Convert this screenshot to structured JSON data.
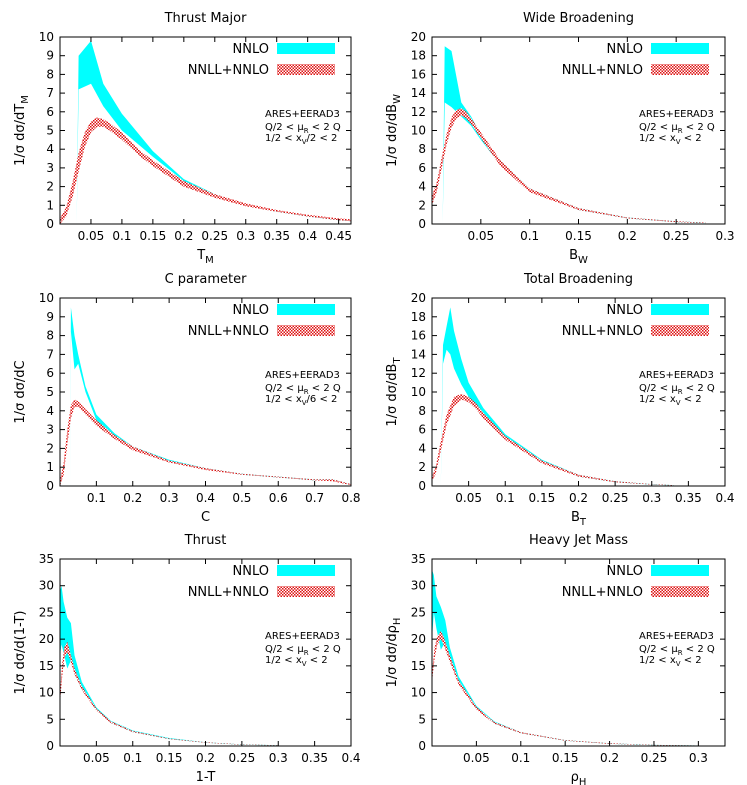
{
  "pattern_color": "#dd1111",
  "chart_data": [
    {
      "type": "area",
      "title": "Thrust Major",
      "xlabel": "T",
      "xlabel_sub": "M",
      "ylabel": "1/σ dσ/dT",
      "ylabel_sub": "M",
      "xlim": [
        0.0,
        0.47
      ],
      "ylim": [
        0,
        10
      ],
      "xticks": [
        0.05,
        0.1,
        0.15,
        0.2,
        0.25,
        0.3,
        0.35,
        0.4,
        0.45
      ],
      "xtick_labels": [
        "0.05",
        "0.1",
        "0.15",
        "0.2",
        "0.25",
        "0.3",
        "0.35",
        "0.4",
        "0.45"
      ],
      "yticks": [
        0,
        1,
        2,
        3,
        4,
        5,
        6,
        7,
        8,
        9,
        10
      ],
      "ytick_labels": [
        "0",
        "1",
        "2",
        "3",
        "4",
        "5",
        "6",
        "7",
        "8",
        "9",
        "10"
      ],
      "legend": [
        "NNLO",
        "NNLL+NNLO"
      ],
      "legend_position": "top-right",
      "annotations": [
        {
          "text": "ARES+EERAD3"
        },
        {
          "text": "Q/2 < μ",
          "sub": "R",
          "tail": " < 2 Q"
        },
        {
          "text": "1/2 < x",
          "sub": "V",
          "tail": "/2 < 2"
        }
      ],
      "series": [
        {
          "name": "NNLO",
          "color": "#00ffff",
          "x": [
            0.025,
            0.027,
            0.03,
            0.05,
            0.07,
            0.1,
            0.15,
            0.2,
            0.25,
            0.3,
            0.35,
            0.4,
            0.45,
            0.47
          ],
          "low": [
            0,
            0,
            7.2,
            7.5,
            6.3,
            5.0,
            3.6,
            2.3,
            1.5,
            1.0,
            0.65,
            0.4,
            0.2,
            0.15
          ],
          "high": [
            0,
            0,
            9.0,
            9.8,
            7.5,
            5.9,
            3.9,
            2.4,
            1.6,
            1.05,
            0.7,
            0.45,
            0.25,
            0.2
          ]
        },
        {
          "name": "NNLL+NNLO",
          "color": "#dd1111",
          "x": [
            0.0,
            0.01,
            0.02,
            0.03,
            0.04,
            0.05,
            0.06,
            0.07,
            0.08,
            0.1,
            0.13,
            0.15,
            0.2,
            0.25,
            0.3,
            0.35,
            0.4,
            0.45,
            0.47
          ],
          "low": [
            0.0,
            0.4,
            1.4,
            2.8,
            4.1,
            4.9,
            5.2,
            5.2,
            5.0,
            4.5,
            3.6,
            3.1,
            2.0,
            1.4,
            0.95,
            0.65,
            0.4,
            0.2,
            0.15
          ],
          "high": [
            0.3,
            0.9,
            2.2,
            3.8,
            4.9,
            5.5,
            5.7,
            5.6,
            5.4,
            4.9,
            3.9,
            3.4,
            2.3,
            1.6,
            1.1,
            0.75,
            0.5,
            0.3,
            0.25
          ]
        }
      ]
    },
    {
      "type": "area",
      "title": "Wide Broadening",
      "xlabel": "B",
      "xlabel_sub": "W",
      "ylabel": "1/σ dσ/dB",
      "ylabel_sub": "W",
      "xlim": [
        0.0,
        0.3
      ],
      "ylim": [
        0,
        20
      ],
      "xticks": [
        0.05,
        0.1,
        0.15,
        0.2,
        0.25,
        0.3
      ],
      "xtick_labels": [
        "0.05",
        "0.1",
        "0.15",
        "0.2",
        "0.25",
        "0.3"
      ],
      "yticks": [
        0,
        2,
        4,
        6,
        8,
        10,
        12,
        14,
        16,
        18,
        20
      ],
      "ytick_labels": [
        "0",
        "2",
        "4",
        "6",
        "8",
        "10",
        "12",
        "14",
        "16",
        "18",
        "20"
      ],
      "legend": [
        "NNLO",
        "NNLL+NNLO"
      ],
      "legend_position": "top-right",
      "annotations": [
        {
          "text": "ARES+EERAD3"
        },
        {
          "text": "Q/2 < μ",
          "sub": "R",
          "tail": " < 2 Q"
        },
        {
          "text": "1/2 < x",
          "sub": "V",
          "tail": " < 2"
        }
      ],
      "series": [
        {
          "name": "NNLO",
          "color": "#00ffff",
          "x": [
            0.01,
            0.011,
            0.013,
            0.02,
            0.03,
            0.04,
            0.05,
            0.07,
            0.1,
            0.15,
            0.2,
            0.25,
            0.28
          ],
          "low": [
            0,
            0,
            13.0,
            12.5,
            11.5,
            10.5,
            9.0,
            6.3,
            3.5,
            1.5,
            0.6,
            0.2,
            0.1
          ],
          "high": [
            0,
            0,
            19.0,
            18.5,
            13.0,
            11.5,
            9.6,
            6.8,
            3.8,
            1.7,
            0.7,
            0.3,
            0.15
          ]
        },
        {
          "name": "NNLL+NNLO",
          "color": "#dd1111",
          "x": [
            0.0,
            0.005,
            0.01,
            0.015,
            0.02,
            0.025,
            0.03,
            0.035,
            0.04,
            0.05,
            0.07,
            0.1,
            0.15,
            0.2,
            0.25,
            0.28
          ],
          "low": [
            2.0,
            3.5,
            6.0,
            8.5,
            10.3,
            11.3,
            11.6,
            11.3,
            10.7,
            9.2,
            6.2,
            3.4,
            1.5,
            0.6,
            0.2,
            0.1
          ],
          "high": [
            3.0,
            4.5,
            7.2,
            9.6,
            11.4,
            12.2,
            12.4,
            12.0,
            11.3,
            9.8,
            6.8,
            3.8,
            1.7,
            0.7,
            0.3,
            0.15
          ]
        }
      ]
    },
    {
      "type": "area",
      "title": "C parameter",
      "xlabel": "C",
      "xlabel_sub": "",
      "ylabel": "1/σ dσ/dC",
      "ylabel_sub": "",
      "xlim": [
        0.0,
        0.8
      ],
      "ylim": [
        0,
        10
      ],
      "xticks": [
        0.1,
        0.2,
        0.3,
        0.4,
        0.5,
        0.6,
        0.7,
        0.8
      ],
      "xtick_labels": [
        "0.1",
        "0.2",
        "0.3",
        "0.4",
        "0.5",
        "0.6",
        "0.7",
        "0.8"
      ],
      "yticks": [
        0,
        1,
        2,
        3,
        4,
        5,
        6,
        7,
        8,
        9,
        10
      ],
      "ytick_labels": [
        "0",
        "1",
        "2",
        "3",
        "4",
        "5",
        "6",
        "7",
        "8",
        "9",
        "10"
      ],
      "legend": [
        "NNLO",
        "NNLL+NNLO"
      ],
      "legend_position": "top-right",
      "annotations": [
        {
          "text": "ARES+EERAD3"
        },
        {
          "text": "Q/2 < μ",
          "sub": "R",
          "tail": " < 2 Q"
        },
        {
          "text": "1/2 < x",
          "sub": "V",
          "tail": "/6 < 2"
        }
      ],
      "series": [
        {
          "name": "NNLO",
          "color": "#00ffff",
          "x": [
            0.025,
            0.028,
            0.03,
            0.04,
            0.05,
            0.07,
            0.1,
            0.15,
            0.2,
            0.3,
            0.4,
            0.5,
            0.6,
            0.7,
            0.75,
            0.8
          ],
          "low": [
            0,
            0,
            8.2,
            6.2,
            6.5,
            5.0,
            3.5,
            2.6,
            2.0,
            1.3,
            0.9,
            0.6,
            0.45,
            0.3,
            0.3,
            0.05
          ],
          "high": [
            0,
            0,
            9.5,
            8.0,
            7.0,
            5.3,
            3.8,
            2.8,
            2.1,
            1.4,
            0.95,
            0.65,
            0.5,
            0.35,
            0.35,
            0.1
          ]
        },
        {
          "name": "NNLL+NNLO",
          "color": "#dd1111",
          "x": [
            0.0,
            0.01,
            0.02,
            0.03,
            0.04,
            0.05,
            0.06,
            0.08,
            0.1,
            0.15,
            0.2,
            0.3,
            0.4,
            0.5,
            0.6,
            0.7,
            0.75,
            0.8
          ],
          "low": [
            0.0,
            0.6,
            2.2,
            3.6,
            4.2,
            4.2,
            4.0,
            3.6,
            3.2,
            2.5,
            1.9,
            1.25,
            0.85,
            0.6,
            0.45,
            0.3,
            0.25,
            0.05
          ],
          "high": [
            0.3,
            1.2,
            3.0,
            4.3,
            4.6,
            4.5,
            4.3,
            3.9,
            3.5,
            2.7,
            2.1,
            1.35,
            0.95,
            0.65,
            0.5,
            0.35,
            0.35,
            0.1
          ]
        }
      ]
    },
    {
      "type": "area",
      "title": "Total Broadening",
      "xlabel": "B",
      "xlabel_sub": "T",
      "ylabel": "1/σ dσ/dB",
      "ylabel_sub": "T",
      "xlim": [
        0.0,
        0.4
      ],
      "ylim": [
        0,
        20
      ],
      "xticks": [
        0.05,
        0.1,
        0.15,
        0.2,
        0.25,
        0.3,
        0.35,
        0.4
      ],
      "xtick_labels": [
        "0.05",
        "0.1",
        "0.15",
        "0.2",
        "0.25",
        "0.3",
        "0.35",
        "0.4"
      ],
      "yticks": [
        0,
        2,
        4,
        6,
        8,
        10,
        12,
        14,
        16,
        18,
        20
      ],
      "ytick_labels": [
        "0",
        "2",
        "4",
        "6",
        "8",
        "10",
        "12",
        "14",
        "16",
        "18",
        "20"
      ],
      "legend": [
        "NNLO",
        "NNLL+NNLO"
      ],
      "legend_position": "top-right",
      "annotations": [
        {
          "text": "ARES+EERAD3"
        },
        {
          "text": "Q/2 < μ",
          "sub": "R",
          "tail": " < 2 Q"
        },
        {
          "text": "1/2 < x",
          "sub": "V",
          "tail": " < 2"
        }
      ],
      "series": [
        {
          "name": "NNLO",
          "color": "#00ffff",
          "x": [
            0.01,
            0.012,
            0.015,
            0.02,
            0.025,
            0.03,
            0.04,
            0.05,
            0.07,
            0.1,
            0.15,
            0.2,
            0.25,
            0.3,
            0.33
          ],
          "low": [
            0,
            0,
            13.0,
            14.5,
            14.0,
            12.5,
            10.8,
            9.5,
            7.5,
            5.0,
            2.5,
            1.0,
            0.4,
            0.15,
            0.05
          ],
          "high": [
            0,
            0,
            15.0,
            17.0,
            19.0,
            16.5,
            13.5,
            11.0,
            8.3,
            5.5,
            2.8,
            1.2,
            0.5,
            0.2,
            0.1
          ]
        },
        {
          "name": "NNLL+NNLO",
          "color": "#dd1111",
          "x": [
            0.0,
            0.005,
            0.01,
            0.02,
            0.03,
            0.04,
            0.05,
            0.06,
            0.07,
            0.1,
            0.15,
            0.2,
            0.25,
            0.3,
            0.33
          ],
          "low": [
            0.5,
            1.3,
            3.0,
            6.5,
            8.5,
            9.2,
            8.9,
            8.2,
            7.2,
            4.9,
            2.4,
            1.0,
            0.4,
            0.15,
            0.05
          ],
          "high": [
            1.0,
            2.0,
            4.0,
            7.6,
            9.5,
            9.8,
            9.5,
            8.8,
            7.8,
            5.3,
            2.7,
            1.2,
            0.5,
            0.2,
            0.1
          ]
        }
      ]
    },
    {
      "type": "area",
      "title": "Thrust",
      "xlabel": "1-T",
      "xlabel_sub": "",
      "ylabel": "1/σ dσ/d(1-T)",
      "ylabel_sub": "",
      "xlim": [
        0.0,
        0.4
      ],
      "ylim": [
        0,
        35
      ],
      "xticks": [
        0.05,
        0.1,
        0.15,
        0.2,
        0.25,
        0.3,
        0.35,
        0.4
      ],
      "xtick_labels": [
        "0.05",
        "0.1",
        "0.15",
        "0.2",
        "0.25",
        "0.3",
        "0.35",
        "0.4"
      ],
      "yticks": [
        0,
        5,
        10,
        15,
        20,
        25,
        30,
        35
      ],
      "ytick_labels": [
        "0",
        "5",
        "10",
        "15",
        "20",
        "25",
        "30",
        "35"
      ],
      "legend": [
        "NNLO",
        "NNLL+NNLO"
      ],
      "legend_position": "top-right",
      "annotations": [
        {
          "text": "ARES+EERAD3"
        },
        {
          "text": "Q/2 < μ",
          "sub": "R",
          "tail": " < 2 Q"
        },
        {
          "text": "1/2 < x",
          "sub": "V",
          "tail": " < 2"
        }
      ],
      "series": [
        {
          "name": "NNLO",
          "color": "#00ffff",
          "x": [
            0.0,
            0.002,
            0.005,
            0.01,
            0.015,
            0.02,
            0.03,
            0.05,
            0.07,
            0.1,
            0.15,
            0.2,
            0.25,
            0.3
          ],
          "low": [
            17.0,
            19.0,
            17.5,
            14.5,
            16.0,
            13.5,
            10.5,
            6.8,
            4.3,
            2.6,
            1.3,
            0.6,
            0.25,
            0.1
          ],
          "high": [
            29.0,
            30.0,
            27.0,
            24.0,
            23.0,
            17.0,
            12.0,
            7.2,
            4.7,
            2.9,
            1.5,
            0.7,
            0.3,
            0.15
          ]
        },
        {
          "name": "NNLL+NNLO",
          "color": "#dd1111",
          "x": [
            0.0,
            0.003,
            0.006,
            0.01,
            0.013,
            0.02,
            0.03,
            0.05,
            0.07,
            0.1,
            0.15,
            0.2,
            0.25,
            0.3
          ],
          "low": [
            8.0,
            13.0,
            16.5,
            17.5,
            16.5,
            13.5,
            10.5,
            6.6,
            4.3,
            2.6,
            1.3,
            0.6,
            0.25,
            0.1
          ],
          "high": [
            10.0,
            15.5,
            18.5,
            19.5,
            18.0,
            14.5,
            11.2,
            7.0,
            4.6,
            2.8,
            1.4,
            0.7,
            0.3,
            0.15
          ]
        }
      ]
    },
    {
      "type": "area",
      "title": "Heavy Jet Mass",
      "xlabel": "ρ",
      "xlabel_sub": "H",
      "ylabel": "1/σ dσ/dρ",
      "ylabel_sub": "H",
      "xlim": [
        0.0,
        0.33
      ],
      "ylim": [
        0,
        35
      ],
      "xticks": [
        0.05,
        0.1,
        0.15,
        0.2,
        0.25,
        0.3
      ],
      "xtick_labels": [
        "0.05",
        "0.1",
        "0.15",
        "0.2",
        "0.25",
        "0.3"
      ],
      "yticks": [
        0,
        5,
        10,
        15,
        20,
        25,
        30,
        35
      ],
      "ytick_labels": [
        "0",
        "5",
        "10",
        "15",
        "20",
        "25",
        "30",
        "35"
      ],
      "legend": [
        "NNLO",
        "NNLL+NNLO"
      ],
      "legend_position": "top-right",
      "annotations": [
        {
          "text": "ARES+EERAD3"
        },
        {
          "text": "Q/2 < μ",
          "sub": "R",
          "tail": " < 2 Q"
        },
        {
          "text": "1/2 < x",
          "sub": "V",
          "tail": " < 2"
        }
      ],
      "series": [
        {
          "name": "NNLO",
          "color": "#00ffff",
          "x": [
            0.0,
            0.002,
            0.005,
            0.01,
            0.015,
            0.02,
            0.03,
            0.05,
            0.07,
            0.1,
            0.15,
            0.2,
            0.25,
            0.3
          ],
          "low": [
            20.0,
            25.0,
            22.0,
            18.0,
            19.5,
            16.5,
            12.0,
            7.0,
            4.2,
            2.4,
            1.0,
            0.4,
            0.15,
            0.05
          ],
          "high": [
            33.0,
            32.0,
            28.0,
            26.0,
            23.5,
            18.5,
            13.0,
            7.5,
            4.6,
            2.6,
            1.1,
            0.5,
            0.2,
            0.1
          ]
        },
        {
          "name": "NNLL+NNLO",
          "color": "#dd1111",
          "x": [
            0.0,
            0.003,
            0.006,
            0.01,
            0.013,
            0.02,
            0.03,
            0.05,
            0.07,
            0.1,
            0.15,
            0.2,
            0.25,
            0.3
          ],
          "low": [
            12.0,
            16.5,
            19.0,
            20.0,
            19.0,
            15.8,
            11.5,
            6.8,
            4.2,
            2.4,
            1.0,
            0.4,
            0.15,
            0.05
          ],
          "high": [
            14.0,
            18.5,
            20.5,
            21.5,
            20.5,
            17.0,
            12.3,
            7.3,
            4.5,
            2.6,
            1.1,
            0.5,
            0.2,
            0.1
          ]
        }
      ]
    }
  ]
}
